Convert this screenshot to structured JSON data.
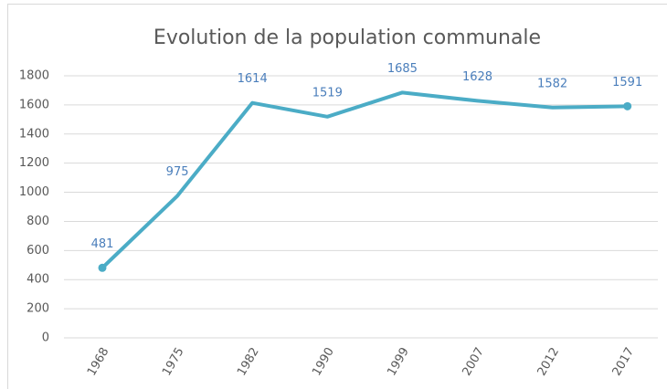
{
  "chart_data": {
    "type": "line",
    "title": "Evolution de la population communale",
    "categories": [
      "1968",
      "1975",
      "1982",
      "1990",
      "1999",
      "2007",
      "2012",
      "2017"
    ],
    "series": [
      {
        "color": "#4bacc6",
        "label_color": "#4a7ebb",
        "values": [
          481,
          975,
          1614,
          1519,
          1685,
          1628,
          1582,
          1591
        ]
      }
    ],
    "ylim": [
      0,
      1800
    ],
    "yticks": [
      0,
      200,
      400,
      600,
      800,
      1000,
      1200,
      1400,
      1600,
      1800
    ],
    "grid": true
  }
}
